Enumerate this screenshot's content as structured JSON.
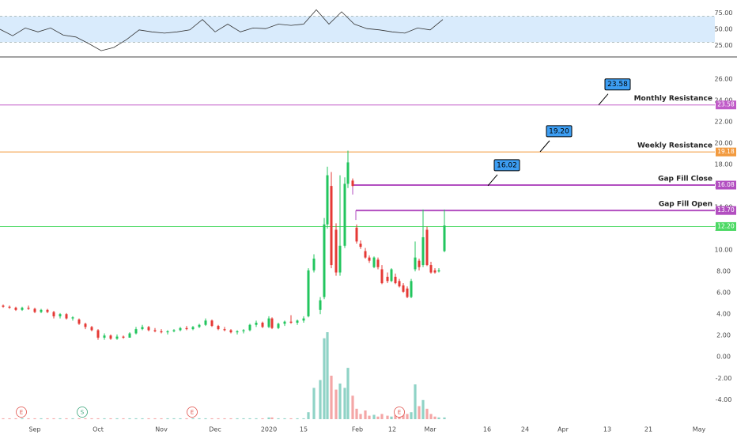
{
  "chart_data": [
    {
      "type": "line",
      "x": [
        0,
        4,
        8,
        12,
        16,
        20,
        24,
        28,
        32,
        36,
        40,
        44,
        48,
        52,
        56,
        60,
        64,
        68,
        72,
        76,
        80,
        84,
        88,
        92,
        96,
        100,
        104,
        108,
        112,
        116,
        120,
        124,
        128,
        132,
        136,
        140
      ],
      "values": [
        50,
        40,
        52,
        46,
        52,
        41,
        38,
        28,
        17,
        22,
        34,
        49,
        46,
        44,
        46,
        49,
        65,
        46,
        58,
        46,
        52,
        51,
        58,
        56,
        58,
        80,
        58,
        77,
        58,
        51,
        49,
        46,
        44,
        52,
        49,
        65
      ],
      "color": "#333333",
      "band": [
        30,
        70
      ],
      "band_color": "#cfe6fb",
      "xlim": [
        0,
        226
      ],
      "ylim": [
        7.3,
        91.5
      ],
      "yticks": [
        {
          "value": 75,
          "label": "75.00"
        },
        {
          "value": 50,
          "label": "50.00"
        },
        {
          "value": 25,
          "label": "25.00"
        }
      ]
    },
    {
      "type": "candlestick",
      "x": [
        1,
        3,
        5,
        7,
        9,
        11,
        13,
        15,
        17,
        19,
        21,
        23,
        25,
        27,
        29,
        31,
        33,
        35,
        37,
        39,
        41,
        43,
        45,
        47,
        49,
        51,
        53,
        55,
        57,
        59,
        61,
        63,
        65,
        67,
        69,
        71,
        73,
        75,
        77,
        79,
        81,
        83,
        85,
        86,
        88,
        90,
        92,
        94,
        96,
        97.5,
        99.25,
        101.25,
        102.5,
        103.5,
        104.75,
        106.25,
        107.5,
        109,
        110,
        111.5,
        112.75,
        114,
        115.5,
        116.75,
        118.25,
        119.5,
        120.75,
        122.5,
        123.75,
        125,
        126.25,
        127.5,
        128.75,
        130,
        131.25,
        132.5,
        133.75,
        135,
        136.25,
        137.5,
        138.75,
        140.5
      ],
      "open": [
        4.8,
        4.7,
        4.6,
        4.4,
        4.6,
        4.5,
        4.2,
        4.4,
        4.2,
        3.8,
        4.0,
        3.6,
        3.5,
        3.1,
        2.8,
        2.5,
        1.8,
        2.0,
        1.7,
        1.9,
        1.8,
        2.2,
        2.6,
        2.8,
        2.5,
        2.4,
        2.3,
        2.4,
        2.5,
        2.7,
        2.6,
        2.8,
        3.0,
        3.4,
        2.9,
        2.6,
        2.5,
        2.3,
        2.4,
        2.5,
        3.0,
        3.2,
        2.8,
        3.6,
        2.7,
        3.1,
        3.3,
        3.2,
        3.4,
        3.8,
        8.1,
        4.4,
        5.6,
        12.4,
        16.0,
        11.9,
        7.9,
        10.4,
        16.2,
        16.5,
        12.1,
        10.6,
        9.9,
        9.3,
        8.4,
        9.1,
        8.2,
        7.5,
        7.1,
        7.5,
        7.1,
        6.7,
        6.4,
        5.6,
        8.2,
        9.0,
        8.6,
        11.9,
        8.6,
        8.1,
        8.0,
        9.9
      ],
      "high": [
        4.9,
        4.8,
        4.7,
        4.7,
        4.8,
        4.6,
        4.5,
        4.5,
        4.3,
        4.1,
        4.1,
        3.8,
        3.6,
        3.2,
        2.9,
        2.6,
        2.2,
        2.1,
        2.1,
        2.0,
        2.3,
        2.8,
        3.0,
        2.9,
        2.7,
        2.6,
        2.5,
        2.6,
        2.8,
        2.9,
        2.9,
        3.1,
        3.6,
        3.5,
        3.0,
        2.8,
        2.6,
        2.5,
        2.6,
        3.1,
        3.4,
        3.3,
        3.8,
        3.7,
        3.2,
        3.4,
        3.9,
        3.5,
        3.8,
        8.3,
        9.6,
        5.6,
        13.0,
        17.8,
        17.3,
        12.5,
        17.0,
        16.8,
        19.3,
        16.7,
        12.4,
        10.9,
        10.2,
        9.5,
        9.4,
        9.3,
        8.6,
        7.9,
        8.3,
        7.8,
        7.3,
        6.9,
        6.6,
        7.3,
        10.8,
        9.2,
        13.8,
        12.2,
        8.9,
        8.3,
        8.3,
        13.8
      ],
      "low": [
        4.6,
        4.5,
        4.3,
        4.3,
        4.4,
        4.1,
        4.1,
        4.1,
        3.6,
        3.6,
        3.5,
        3.4,
        3.0,
        2.6,
        2.4,
        1.6,
        1.6,
        1.6,
        1.6,
        1.7,
        1.8,
        2.1,
        2.5,
        2.4,
        2.3,
        2.2,
        2.1,
        2.3,
        2.4,
        2.5,
        2.5,
        2.7,
        2.9,
        2.8,
        2.5,
        2.4,
        2.2,
        2.1,
        2.2,
        2.4,
        2.8,
        2.7,
        2.7,
        2.6,
        2.6,
        2.9,
        3.1,
        3.0,
        3.2,
        3.7,
        7.9,
        4.0,
        5.4,
        12.0,
        8.3,
        7.6,
        7.6,
        10.2,
        15.8,
        15.9,
        10.6,
        10.1,
        9.2,
        8.8,
        8.3,
        8.2,
        6.8,
        6.9,
        7.0,
        6.8,
        6.5,
        6.0,
        5.5,
        5.5,
        8.0,
        8.1,
        8.4,
        8.5,
        7.8,
        7.8,
        7.9,
        9.8
      ],
      "close": [
        4.7,
        4.6,
        4.4,
        4.6,
        4.5,
        4.2,
        4.4,
        4.2,
        3.8,
        4.0,
        3.6,
        3.7,
        3.1,
        2.8,
        2.5,
        1.8,
        2.0,
        1.7,
        1.9,
        1.8,
        2.2,
        2.6,
        2.8,
        2.5,
        2.4,
        2.3,
        2.4,
        2.5,
        2.7,
        2.6,
        2.8,
        3.0,
        3.4,
        2.9,
        2.6,
        2.5,
        2.3,
        2.4,
        2.5,
        3.0,
        3.2,
        2.8,
        3.6,
        2.7,
        3.1,
        3.3,
        3.2,
        3.4,
        3.6,
        8.1,
        9.2,
        5.3,
        12.4,
        17.0,
        8.6,
        7.9,
        10.4,
        16.2,
        18.2,
        16.0,
        10.8,
        10.3,
        9.3,
        9.0,
        9.3,
        8.4,
        6.9,
        7.1,
        8.2,
        6.9,
        6.6,
        6.1,
        5.6,
        7.1,
        9.3,
        8.4,
        11.2,
        8.6,
        7.9,
        7.9,
        8.1,
        12.3
      ],
      "volume": [
        1,
        1,
        1,
        1,
        1,
        1,
        1,
        1,
        1,
        1,
        1,
        1,
        1,
        1,
        1,
        1,
        1,
        1,
        1,
        1,
        1,
        1,
        1,
        1,
        1,
        1,
        1,
        1,
        1,
        1,
        1,
        1,
        1,
        1,
        1,
        1,
        1,
        1,
        1,
        1,
        1,
        1,
        2,
        2,
        1,
        1,
        1,
        1,
        1,
        8,
        36,
        45,
        93,
        100,
        50,
        34,
        41,
        36,
        59,
        27,
        12,
        6,
        10,
        4,
        5,
        3,
        6,
        4,
        3,
        5,
        12,
        10,
        6,
        8,
        40,
        15,
        22,
        12,
        6,
        3,
        2,
        2
      ],
      "volume_lim": [
        0,
        100
      ],
      "up_color": "#22c55e",
      "down_color": "#e53935",
      "up_volume_color": "#8fd3c6",
      "down_volume_color": "#f4a6a6",
      "xlim": [
        0,
        226
      ],
      "ylim": [
        -6.2,
        28
      ],
      "yticks": [
        {
          "value": 26,
          "label": "26.00"
        },
        {
          "value": 24,
          "label": "24.00"
        },
        {
          "value": 22,
          "label": "22.00"
        },
        {
          "value": 20,
          "label": "20.00"
        },
        {
          "value": 18,
          "label": "18.00"
        },
        {
          "value": 16,
          "label": "16.00"
        },
        {
          "value": 14,
          "label": "14.00"
        },
        {
          "value": 12,
          "label": "12.00"
        },
        {
          "value": 10,
          "label": "10.00"
        },
        {
          "value": 8,
          "label": "8.00"
        },
        {
          "value": 6,
          "label": "6.00"
        },
        {
          "value": 4,
          "label": "4.00"
        },
        {
          "value": 2,
          "label": "2.00"
        },
        {
          "value": 0,
          "label": "0.00"
        },
        {
          "value": -2,
          "label": "-2.00"
        },
        {
          "value": -4,
          "label": "-4.00"
        }
      ],
      "xticks": [
        {
          "value": 11,
          "label": "Sep"
        },
        {
          "value": 31,
          "label": "Oct"
        },
        {
          "value": 51,
          "label": "Nov"
        },
        {
          "value": 68,
          "label": "Dec"
        },
        {
          "value": 85,
          "label": "2020"
        },
        {
          "value": 96,
          "label": "15"
        },
        {
          "value": 113,
          "label": "Feb"
        },
        {
          "value": 124,
          "label": "12"
        },
        {
          "value": 136,
          "label": "Mar"
        },
        {
          "value": 154,
          "label": "16"
        },
        {
          "value": 166,
          "label": "24"
        },
        {
          "value": 178,
          "label": "Apr"
        },
        {
          "value": 192,
          "label": "13"
        },
        {
          "value": 205,
          "label": "21"
        },
        {
          "value": 221,
          "label": "May"
        }
      ],
      "levels": [
        {
          "name": "Monthly Resistance",
          "value": 23.58,
          "label": "23.58",
          "color": "#c05ac8",
          "start": 0
        },
        {
          "name": "Weekly Resistance",
          "value": 19.18,
          "label": "19.18",
          "color": "#f29a3f",
          "start": 0
        },
        {
          "name": "Gap Fill Close",
          "value": 16.08,
          "label": "16.08",
          "color": "#b24ec0",
          "start": 111.5
        },
        {
          "name": "Gap Fill Open",
          "value": 13.7,
          "label": "13.70",
          "color": "#b24ec0",
          "start": 112.5
        },
        {
          "value": 12.2,
          "label": "12.20",
          "color": "#4cd964",
          "start": 0
        }
      ],
      "callouts": [
        {
          "label": "23.58",
          "x": 189.25,
          "value": 23.58
        },
        {
          "label": "19.20",
          "x": 170.75,
          "value": 19.2
        },
        {
          "label": "16.02",
          "x": 154.25,
          "value": 16.02
        }
      ],
      "events": [
        {
          "x": 6.75,
          "label": "E"
        },
        {
          "x": 26,
          "label": "S"
        },
        {
          "x": 60.75,
          "label": "E"
        },
        {
          "x": 126.25,
          "label": "E"
        }
      ]
    }
  ]
}
